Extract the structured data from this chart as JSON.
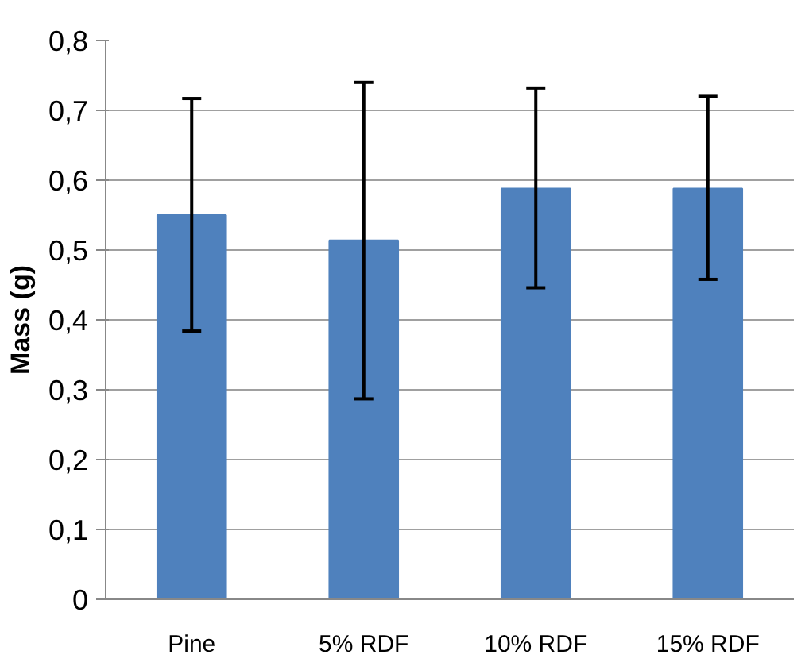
{
  "chart_data": {
    "type": "bar",
    "ylabel": "Mass (g)",
    "categories": [
      "Pine",
      "5% RDF",
      "10% RDF",
      "15% RDF"
    ],
    "values": [
      0.55,
      0.514,
      0.588,
      0.588
    ],
    "errors": [
      [
        0.384,
        0.717
      ],
      [
        0.287,
        0.74
      ],
      [
        0.446,
        0.732
      ],
      [
        0.458,
        0.72
      ]
    ],
    "color": "#4f81bd",
    "ylim": [
      0,
      0.8
    ],
    "yticks": [
      {
        "value": 0,
        "label": "0"
      },
      {
        "value": 0.1,
        "label": "0,1"
      },
      {
        "value": 0.2,
        "label": "0,2"
      },
      {
        "value": 0.3,
        "label": "0,3"
      },
      {
        "value": 0.4,
        "label": "0,4"
      },
      {
        "value": 0.5,
        "label": "0,5"
      },
      {
        "value": 0.6,
        "label": "0,6"
      },
      {
        "value": 0.7,
        "label": "0,7"
      },
      {
        "value": 0.8,
        "label": "0,8"
      }
    ],
    "grid": "y"
  }
}
